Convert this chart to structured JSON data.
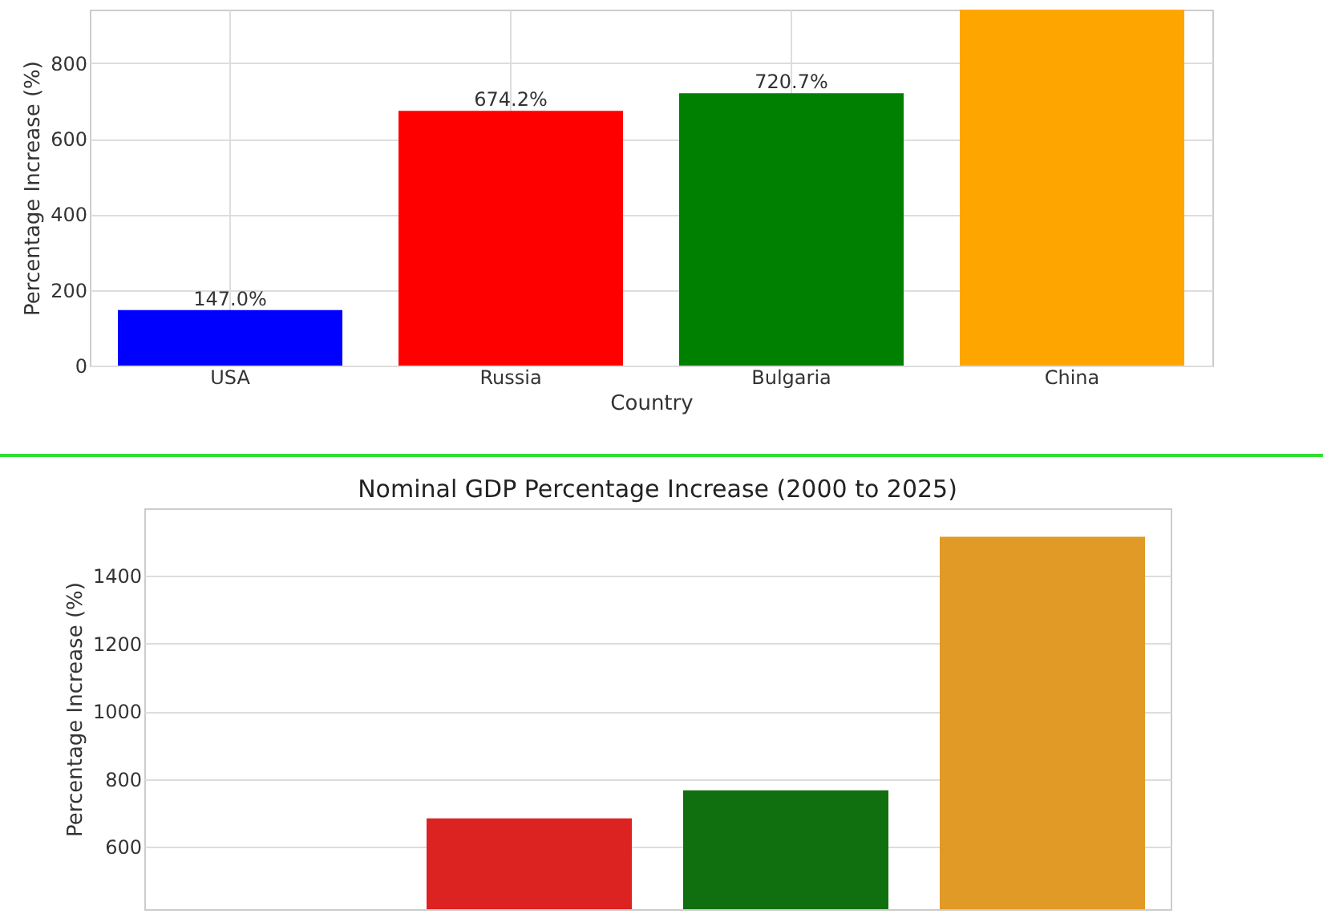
{
  "chart_data": [
    {
      "type": "bar",
      "xlabel": "Country",
      "ylabel": "Percentage Increase (%)",
      "categories": [
        "USA",
        "Russia",
        "Bulgaria",
        "China"
      ],
      "values": [
        147.0,
        674.2,
        720.7,
        942
      ],
      "colors": [
        "#0000ff",
        "#ff0000",
        "#008000",
        "#ffa500"
      ],
      "value_labels": [
        "147.0%",
        "674.2%",
        "720.7%",
        null
      ],
      "ylim": [
        0,
        942
      ],
      "yticks": [
        0,
        200,
        400,
        600,
        800
      ],
      "grid": true
    },
    {
      "type": "bar",
      "title": "Nominal GDP Percentage Increase (2000 to 2025)",
      "ylabel": "Percentage Increase (%)",
      "categories": [
        null,
        null,
        null,
        null
      ],
      "values": [
        null,
        684,
        767,
        1516
      ],
      "colors": [
        "#1f3fcf",
        "#dd2222",
        "#107010",
        "#e09a25"
      ],
      "ylim": [
        416,
        1600
      ],
      "yticks": [
        600,
        800,
        1000,
        1200,
        1400
      ],
      "grid": "y",
      "tick_labels": "y"
    }
  ]
}
